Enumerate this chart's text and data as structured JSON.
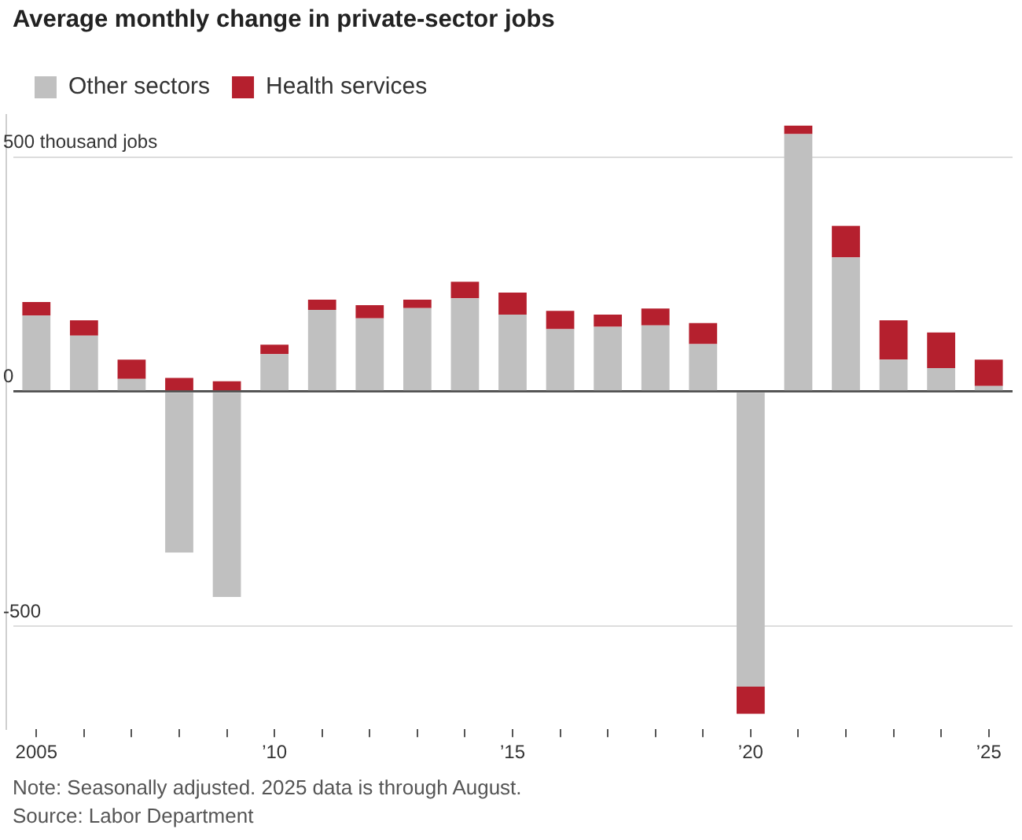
{
  "chart_data": {
    "type": "bar",
    "title": "Average monthly change in private-sector jobs",
    "stacked": true,
    "categories": [
      "2005",
      null,
      null,
      null,
      null,
      "’10",
      null,
      null,
      null,
      null,
      "’15",
      null,
      null,
      null,
      null,
      "’20",
      null,
      null,
      null,
      null,
      "’25"
    ],
    "series": [
      {
        "name": "Other sectors",
        "color": "#c0c0c0",
        "values": [
          162,
          119,
          27,
          -343,
          -438,
          80,
          174,
          156,
          178,
          199,
          164,
          133,
          138,
          141,
          101,
          -629,
          549,
          286,
          68,
          50,
          12
        ]
      },
      {
        "name": "Health services",
        "color": "#b5202e",
        "values": [
          29,
          33,
          41,
          29,
          22,
          20,
          22,
          28,
          18,
          35,
          47,
          39,
          26,
          36,
          45,
          -58,
          18,
          67,
          84,
          76,
          56
        ]
      }
    ],
    "ylim": [
      -720,
      590
    ],
    "yticks": [
      {
        "value": -500,
        "label": "-500"
      },
      0,
      {
        "value": 500,
        "label": "500 thousand jobs"
      }
    ],
    "grid": "y",
    "legend": "top left",
    "annotations": [
      "Note: Seasonally adjusted. 2025 data is through August.",
      "Source: Labor Department"
    ]
  }
}
